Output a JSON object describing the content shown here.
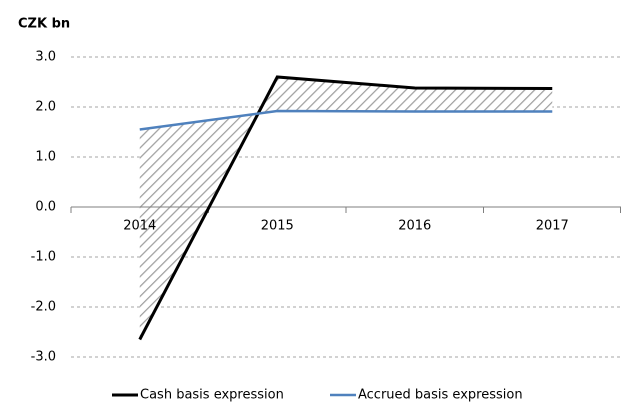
{
  "chart_data": {
    "type": "line",
    "y_axis_label": "CZK bn",
    "categories": [
      "2014",
      "2015",
      "2016",
      "2017"
    ],
    "series": [
      {
        "name": "Cash basis expression",
        "color": "#000000",
        "values": [
          -2.65,
          2.6,
          2.38,
          2.37
        ]
      },
      {
        "name": "Accrued basis expression",
        "color": "#4f81bd",
        "values": [
          1.55,
          1.92,
          1.91,
          1.91
        ]
      }
    ],
    "ylim": [
      -3,
      3
    ],
    "yticks": [
      {
        "value": 3,
        "label": "3.0"
      },
      {
        "value": 2,
        "label": "2.0"
      },
      {
        "value": 1,
        "label": "1.0"
      },
      {
        "value": 0,
        "label": "0.0"
      },
      {
        "value": -1,
        "label": "-1.0"
      },
      {
        "value": -2,
        "label": "-2.0"
      },
      {
        "value": -3,
        "label": "-3.0"
      }
    ],
    "grid": true
  }
}
